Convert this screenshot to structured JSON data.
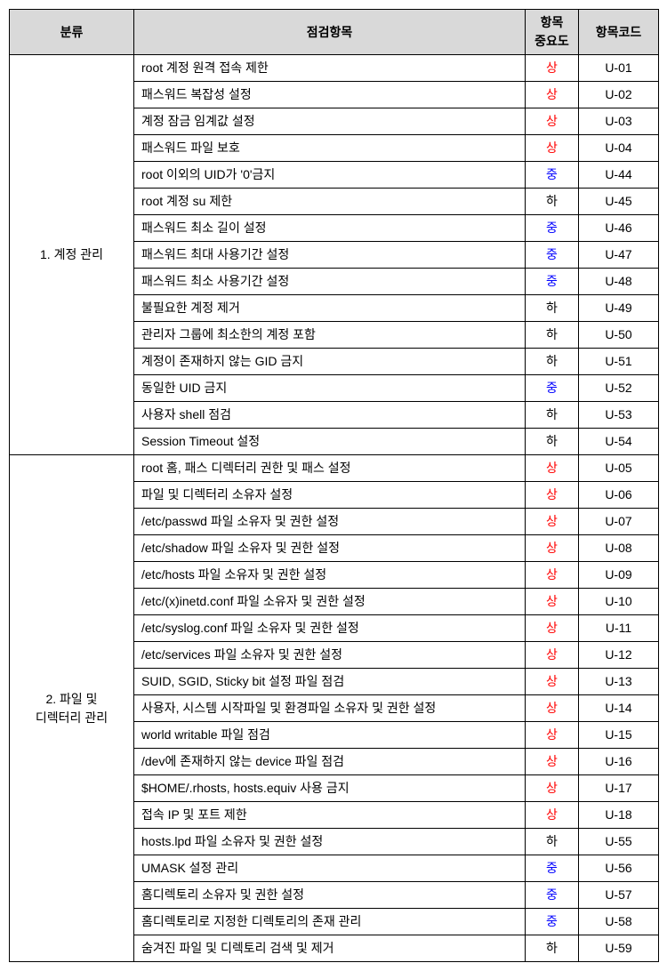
{
  "headers": {
    "category": "분류",
    "item": "점검항목",
    "importance": "항목\n중요도",
    "code": "항목코드"
  },
  "importance_labels": {
    "high": "상",
    "mid": "중",
    "low": "하"
  },
  "importance_colors": {
    "high": "#ff0000",
    "mid": "#0000ff",
    "low": "#000000"
  },
  "header_bg": "#d9d9d9",
  "border_color": "#000000",
  "categories": [
    {
      "name": "1. 계정 관리",
      "rows": [
        {
          "item": "root 계정 원격 접속 제한",
          "imp": "high",
          "code": "U-01"
        },
        {
          "item": "패스워드 복잡성 설정",
          "imp": "high",
          "code": "U-02"
        },
        {
          "item": "계정 잠금 임계값 설정",
          "imp": "high",
          "code": "U-03"
        },
        {
          "item": "패스워드 파일 보호",
          "imp": "high",
          "code": "U-04"
        },
        {
          "item": "root 이외의 UID가 '0'금지",
          "imp": "mid",
          "code": "U-44"
        },
        {
          "item": "root 계정 su 제한",
          "imp": "low",
          "code": "U-45"
        },
        {
          "item": "패스워드 최소 길이 설정",
          "imp": "mid",
          "code": "U-46"
        },
        {
          "item": "패스워드 최대 사용기간 설정",
          "imp": "mid",
          "code": "U-47"
        },
        {
          "item": "패스워드 최소 사용기간 설정",
          "imp": "mid",
          "code": "U-48"
        },
        {
          "item": "불필요한 계정 제거",
          "imp": "low",
          "code": "U-49"
        },
        {
          "item": "관리자 그룹에 최소한의 계정 포함",
          "imp": "low",
          "code": "U-50"
        },
        {
          "item": "계정이 존재하지 않는 GID 금지",
          "imp": "low",
          "code": "U-51"
        },
        {
          "item": "동일한 UID 금지",
          "imp": "mid",
          "code": "U-52"
        },
        {
          "item": "사용자 shell 점검",
          "imp": "low",
          "code": "U-53"
        },
        {
          "item": "Session Timeout 설정",
          "imp": "low",
          "code": "U-54"
        }
      ]
    },
    {
      "name": "2. 파일 및\n디렉터리 관리",
      "rows": [
        {
          "item": "root 홈, 패스 디렉터리 권한 및 패스 설정",
          "imp": "high",
          "code": "U-05"
        },
        {
          "item": "파일 및 디렉터리 소유자 설정",
          "imp": "high",
          "code": "U-06"
        },
        {
          "item": "/etc/passwd 파일 소유자 및 권한 설정",
          "imp": "high",
          "code": "U-07"
        },
        {
          "item": "/etc/shadow 파일 소유자 및 권한 설정",
          "imp": "high",
          "code": "U-08"
        },
        {
          "item": "/etc/hosts 파일 소유자 및 권한 설정",
          "imp": "high",
          "code": "U-09"
        },
        {
          "item": "/etc/(x)inetd.conf 파일 소유자 및 권한 설정",
          "imp": "high",
          "code": "U-10"
        },
        {
          "item": "/etc/syslog.conf 파일 소유자 및 권한 설정",
          "imp": "high",
          "code": "U-11"
        },
        {
          "item": "/etc/services 파일 소유자 및 권한 설정",
          "imp": "high",
          "code": "U-12"
        },
        {
          "item": "SUID, SGID, Sticky bit 설정 파일 점검",
          "imp": "high",
          "code": "U-13"
        },
        {
          "item": "사용자, 시스템 시작파일 및 환경파일 소유자 및 권한 설정",
          "imp": "high",
          "code": "U-14"
        },
        {
          "item": "world writable 파일 점검",
          "imp": "high",
          "code": "U-15"
        },
        {
          "item": "/dev에 존재하지 않는 device 파일 점검",
          "imp": "high",
          "code": "U-16"
        },
        {
          "item": "$HOME/.rhosts, hosts.equiv 사용 금지",
          "imp": "high",
          "code": "U-17"
        },
        {
          "item": "접속 IP 및 포트 제한",
          "imp": "high",
          "code": "U-18"
        },
        {
          "item": "hosts.lpd 파일 소유자 및 권한 설정",
          "imp": "low",
          "code": "U-55"
        },
        {
          "item": "UMASK 설정 관리",
          "imp": "mid",
          "code": "U-56"
        },
        {
          "item": "홈디렉토리 소유자 및 권한 설정",
          "imp": "mid",
          "code": "U-57"
        },
        {
          "item": "홈디렉토리로 지정한 디렉토리의 존재 관리",
          "imp": "mid",
          "code": "U-58"
        },
        {
          "item": "숨겨진 파일 및 디렉토리 검색 및 제거",
          "imp": "low",
          "code": "U-59"
        }
      ]
    }
  ]
}
